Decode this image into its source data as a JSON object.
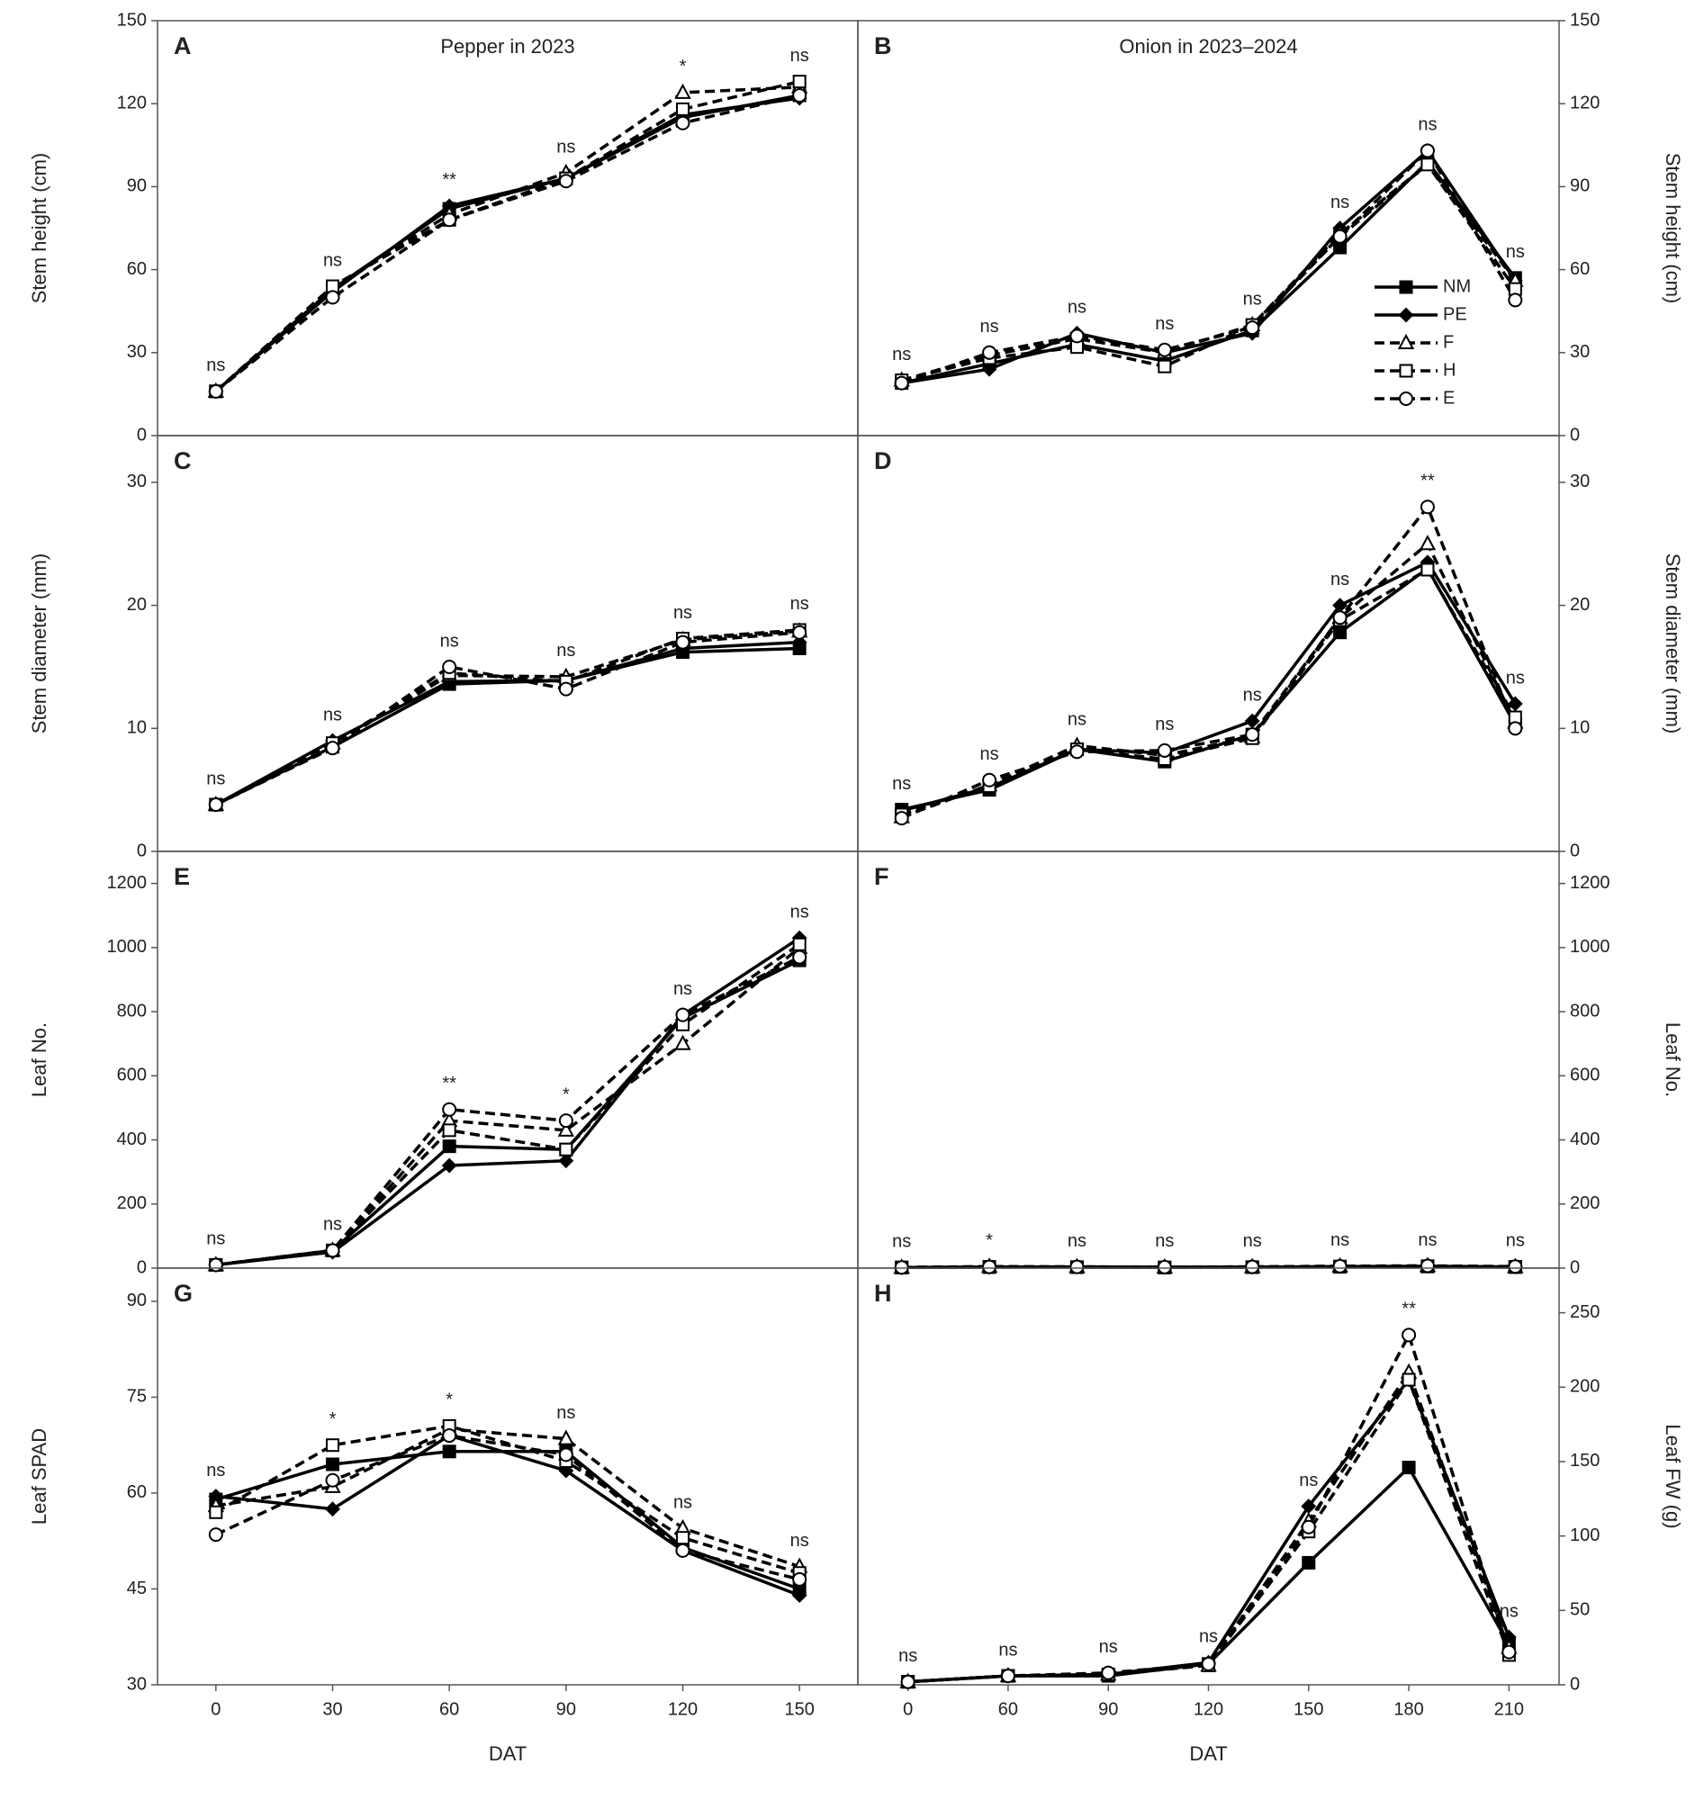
{
  "chart_data": [
    {
      "type": "line",
      "panel": "A",
      "title": "Pepper in 2023",
      "ylabel": "Stem height (cm)",
      "axis_side": "left",
      "x": [
        0,
        30,
        60,
        90,
        120,
        150
      ],
      "xlim": [
        -15,
        165
      ],
      "ylim": [
        0,
        150
      ],
      "yticks": [
        0,
        30,
        60,
        90,
        120,
        150
      ],
      "annotations": [
        "ns",
        "ns",
        "**",
        "ns",
        "*",
        "ns"
      ],
      "series": [
        {
          "color": "#000000",
          "dash": false,
          "marker": "square",
          "filled": true,
          "values": [
            16,
            53,
            82,
            93,
            115,
            123
          ]
        },
        {
          "color": "#000000",
          "dash": false,
          "marker": "diamond",
          "filled": true,
          "values": [
            16,
            52,
            83,
            93,
            116,
            122
          ]
        },
        {
          "color": "#000000",
          "dash": true,
          "marker": "triangle",
          "filled": false,
          "values": [
            16,
            53,
            80,
            95,
            124,
            126
          ]
        },
        {
          "color": "#000000",
          "dash": true,
          "marker": "square",
          "filled": false,
          "values": [
            16,
            54,
            78,
            93,
            118,
            128
          ]
        },
        {
          "color": "#000000",
          "dash": true,
          "marker": "circle",
          "filled": false,
          "values": [
            16,
            50,
            78,
            92,
            113,
            123
          ]
        }
      ]
    },
    {
      "type": "line",
      "panel": "B",
      "title": "Onion in 2023–2024",
      "ylabel": "Stem height (cm)",
      "axis_side": "right",
      "ylim": [
        0,
        150
      ],
      "yticks": [
        0,
        30,
        60,
        90,
        120,
        150
      ],
      "legend": "right",
      "annotations": [
        "ns",
        "ns",
        "ns",
        "ns",
        "ns",
        "ns",
        "ns",
        "ns"
      ],
      "series": [
        {
          "name": "NM",
          "color": "#000000",
          "dash": false,
          "marker": "square",
          "filled": true,
          "values": [
            19,
            26,
            33,
            27,
            38,
            68,
            99,
            57
          ]
        },
        {
          "name": "PE",
          "color": "#000000",
          "dash": false,
          "marker": "diamond",
          "filled": true,
          "values": [
            19,
            24,
            37,
            30,
            37,
            75,
            103,
            56
          ]
        },
        {
          "name": "F",
          "color": "#000000",
          "dash": true,
          "marker": "triangle",
          "filled": false,
          "values": [
            20,
            29,
            35,
            30,
            40,
            73,
            98,
            56
          ]
        },
        {
          "name": "H",
          "color": "#000000",
          "dash": true,
          "marker": "square",
          "filled": false,
          "values": [
            20,
            28,
            32,
            25,
            40,
            72,
            98,
            53
          ]
        },
        {
          "name": "E",
          "color": "#000000",
          "dash": true,
          "marker": "circle",
          "filled": false,
          "values": [
            19,
            30,
            36,
            31,
            39,
            72,
            103,
            49
          ]
        }
      ]
    },
    {
      "type": "line",
      "panel": "C",
      "ylabel": "Stem diameter (mm)",
      "axis_side": "left",
      "x": [
        0,
        30,
        60,
        90,
        120,
        150
      ],
      "xlim": [
        -15,
        165
      ],
      "ylim": [
        0,
        33.8
      ],
      "yticks": [
        0,
        10,
        20,
        30
      ],
      "annotations": [
        "ns",
        "ns",
        "ns",
        "ns",
        "ns",
        "ns"
      ],
      "series": [
        {
          "color": "#000000",
          "dash": false,
          "marker": "square",
          "filled": true,
          "values": [
            3.8,
            8.5,
            13.6,
            13.9,
            16.2,
            16.5
          ]
        },
        {
          "color": "#000000",
          "dash": false,
          "marker": "diamond",
          "filled": true,
          "values": [
            3.8,
            9.0,
            13.8,
            13.9,
            16.5,
            17.0
          ]
        },
        {
          "color": "#000000",
          "dash": true,
          "marker": "triangle",
          "filled": false,
          "values": [
            3.8,
            8.8,
            14.3,
            14.2,
            17.2,
            17.9
          ]
        },
        {
          "color": "#000000",
          "dash": true,
          "marker": "square",
          "filled": false,
          "values": [
            3.8,
            8.8,
            14.5,
            13.8,
            17.3,
            18.0
          ]
        },
        {
          "color": "#000000",
          "dash": true,
          "marker": "circle",
          "filled": false,
          "values": [
            3.8,
            8.4,
            15.0,
            13.2,
            17.0,
            17.8
          ]
        }
      ]
    },
    {
      "type": "line",
      "panel": "D",
      "ylabel": "Stem diameter (mm)",
      "axis_side": "right",
      "ylim": [
        0,
        33.8
      ],
      "yticks": [
        0,
        10,
        20,
        30
      ],
      "annotations": [
        "ns",
        "ns",
        "ns",
        "ns",
        "ns",
        "ns",
        "**",
        "ns"
      ],
      "series": [
        {
          "color": "#000000",
          "dash": false,
          "marker": "square",
          "filled": true,
          "values": [
            3.4,
            5.0,
            8.3,
            7.3,
            9.5,
            17.8,
            23.0,
            10.3
          ]
        },
        {
          "color": "#000000",
          "dash": false,
          "marker": "diamond",
          "filled": true,
          "values": [
            3.3,
            5.2,
            8.3,
            8.0,
            10.6,
            20.0,
            23.5,
            12.0
          ]
        },
        {
          "color": "#000000",
          "dash": true,
          "marker": "triangle",
          "filled": false,
          "values": [
            2.8,
            5.4,
            8.6,
            7.8,
            9.3,
            19.0,
            25.0,
            10.5
          ]
        },
        {
          "color": "#000000",
          "dash": true,
          "marker": "square",
          "filled": false,
          "values": [
            3.0,
            5.3,
            8.3,
            7.5,
            9.2,
            18.8,
            22.9,
            10.9
          ]
        },
        {
          "color": "#000000",
          "dash": true,
          "marker": "circle",
          "filled": false,
          "values": [
            2.7,
            5.8,
            8.1,
            8.2,
            9.5,
            19.0,
            28.0,
            10.0
          ]
        }
      ]
    },
    {
      "type": "line",
      "panel": "E",
      "ylabel": "Leaf No.",
      "axis_side": "left",
      "x": [
        0,
        30,
        60,
        90,
        120,
        150
      ],
      "xlim": [
        -15,
        165
      ],
      "ylim": [
        0,
        1300
      ],
      "yticks": [
        0,
        200,
        400,
        600,
        800,
        1000,
        1200
      ],
      "annotations": [
        "ns",
        "ns",
        "**",
        "*",
        "ns",
        "ns"
      ],
      "series": [
        {
          "color": "#000000",
          "dash": false,
          "marker": "square",
          "filled": true,
          "values": [
            10,
            55,
            380,
            370,
            780,
            960
          ]
        },
        {
          "color": "#000000",
          "dash": false,
          "marker": "diamond",
          "filled": true,
          "values": [
            10,
            50,
            320,
            335,
            790,
            1030
          ]
        },
        {
          "color": "#000000",
          "dash": true,
          "marker": "triangle",
          "filled": false,
          "values": [
            10,
            55,
            460,
            430,
            700,
            1000
          ]
        },
        {
          "color": "#000000",
          "dash": true,
          "marker": "square",
          "filled": false,
          "values": [
            10,
            55,
            430,
            370,
            760,
            1010
          ]
        },
        {
          "color": "#000000",
          "dash": true,
          "marker": "circle",
          "filled": false,
          "values": [
            10,
            55,
            495,
            460,
            790,
            970
          ]
        }
      ]
    },
    {
      "type": "line",
      "panel": "F",
      "ylabel": "Leaf No.",
      "axis_side": "right",
      "ylim": [
        0,
        1300
      ],
      "yticks": [
        0,
        200,
        400,
        600,
        800,
        1000,
        1200
      ],
      "annotations": [
        "ns",
        "*",
        "ns",
        "ns",
        "ns",
        "ns",
        "ns",
        "ns"
      ],
      "series": [
        {
          "color": "#000000",
          "dash": false,
          "marker": "square",
          "filled": true,
          "values": [
            2,
            3,
            3,
            2,
            3,
            4,
            5,
            3
          ]
        },
        {
          "color": "#000000",
          "dash": false,
          "marker": "diamond",
          "filled": true,
          "values": [
            2,
            3,
            4,
            3,
            3,
            5,
            6,
            4
          ]
        },
        {
          "color": "#000000",
          "dash": true,
          "marker": "triangle",
          "filled": false,
          "values": [
            2,
            5,
            4,
            3,
            4,
            6,
            7,
            4
          ]
        },
        {
          "color": "#000000",
          "dash": true,
          "marker": "square",
          "filled": false,
          "values": [
            2,
            4,
            3,
            2,
            3,
            5,
            6,
            4
          ]
        },
        {
          "color": "#000000",
          "dash": true,
          "marker": "circle",
          "filled": false,
          "values": [
            2,
            4,
            4,
            3,
            4,
            6,
            7,
            5
          ]
        }
      ]
    },
    {
      "type": "line",
      "panel": "G",
      "ylabel": "Leaf SPAD",
      "axis_side": "left",
      "xlabel": "DAT",
      "x": [
        0,
        30,
        60,
        90,
        120,
        150
      ],
      "xlim": [
        -15,
        165
      ],
      "xticks": [
        0,
        30,
        60,
        90,
        120,
        150
      ],
      "ylim": [
        30,
        95.2
      ],
      "yticks": [
        30,
        45,
        60,
        75,
        90
      ],
      "annotations": [
        "ns",
        "*",
        "*",
        "ns",
        "ns",
        "ns"
      ],
      "series": [
        {
          "color": "#000000",
          "dash": false,
          "marker": "square",
          "filled": true,
          "values": [
            59,
            64.5,
            66.5,
            66.5,
            51.5,
            45
          ]
        },
        {
          "color": "#000000",
          "dash": false,
          "marker": "diamond",
          "filled": true,
          "values": [
            59.5,
            57.5,
            69,
            63.5,
            51,
            44
          ]
        },
        {
          "color": "#000000",
          "dash": true,
          "marker": "triangle",
          "filled": false,
          "values": [
            58,
            61,
            70,
            68.5,
            54.5,
            48.5
          ]
        },
        {
          "color": "#000000",
          "dash": true,
          "marker": "square",
          "filled": false,
          "values": [
            57,
            67.5,
            70.5,
            65,
            53,
            47.5
          ]
        },
        {
          "color": "#000000",
          "dash": true,
          "marker": "circle",
          "filled": false,
          "values": [
            53.5,
            62,
            69,
            66,
            51,
            46.5
          ]
        }
      ]
    },
    {
      "type": "line",
      "panel": "H",
      "ylabel": "Leaf FW (g)",
      "axis_side": "right",
      "xlabel": "DAT",
      "categories": [
        "0",
        "60",
        "90",
        "120",
        "150",
        "180",
        "210"
      ],
      "ylim": [
        0,
        280
      ],
      "yticks": [
        0,
        50,
        100,
        150,
        200,
        250
      ],
      "annotations": [
        "ns",
        "ns",
        "ns",
        "ns",
        "ns",
        "**",
        "ns"
      ],
      "series": [
        {
          "color": "#000000",
          "dash": false,
          "marker": "square",
          "filled": true,
          "values": [
            2,
            6,
            6,
            14,
            82,
            146,
            27
          ]
        },
        {
          "color": "#000000",
          "dash": false,
          "marker": "diamond",
          "filled": true,
          "values": [
            2,
            6,
            7,
            15,
            120,
            205,
            32
          ]
        },
        {
          "color": "#000000",
          "dash": true,
          "marker": "triangle",
          "filled": false,
          "values": [
            2,
            6,
            7,
            13,
            110,
            210,
            25
          ]
        },
        {
          "color": "#000000",
          "dash": true,
          "marker": "square",
          "filled": false,
          "values": [
            2,
            6,
            7,
            13,
            103,
            205,
            20
          ]
        },
        {
          "color": "#000000",
          "dash": true,
          "marker": "circle",
          "filled": false,
          "values": [
            2,
            6,
            8,
            14,
            106,
            235,
            22
          ]
        }
      ]
    }
  ]
}
